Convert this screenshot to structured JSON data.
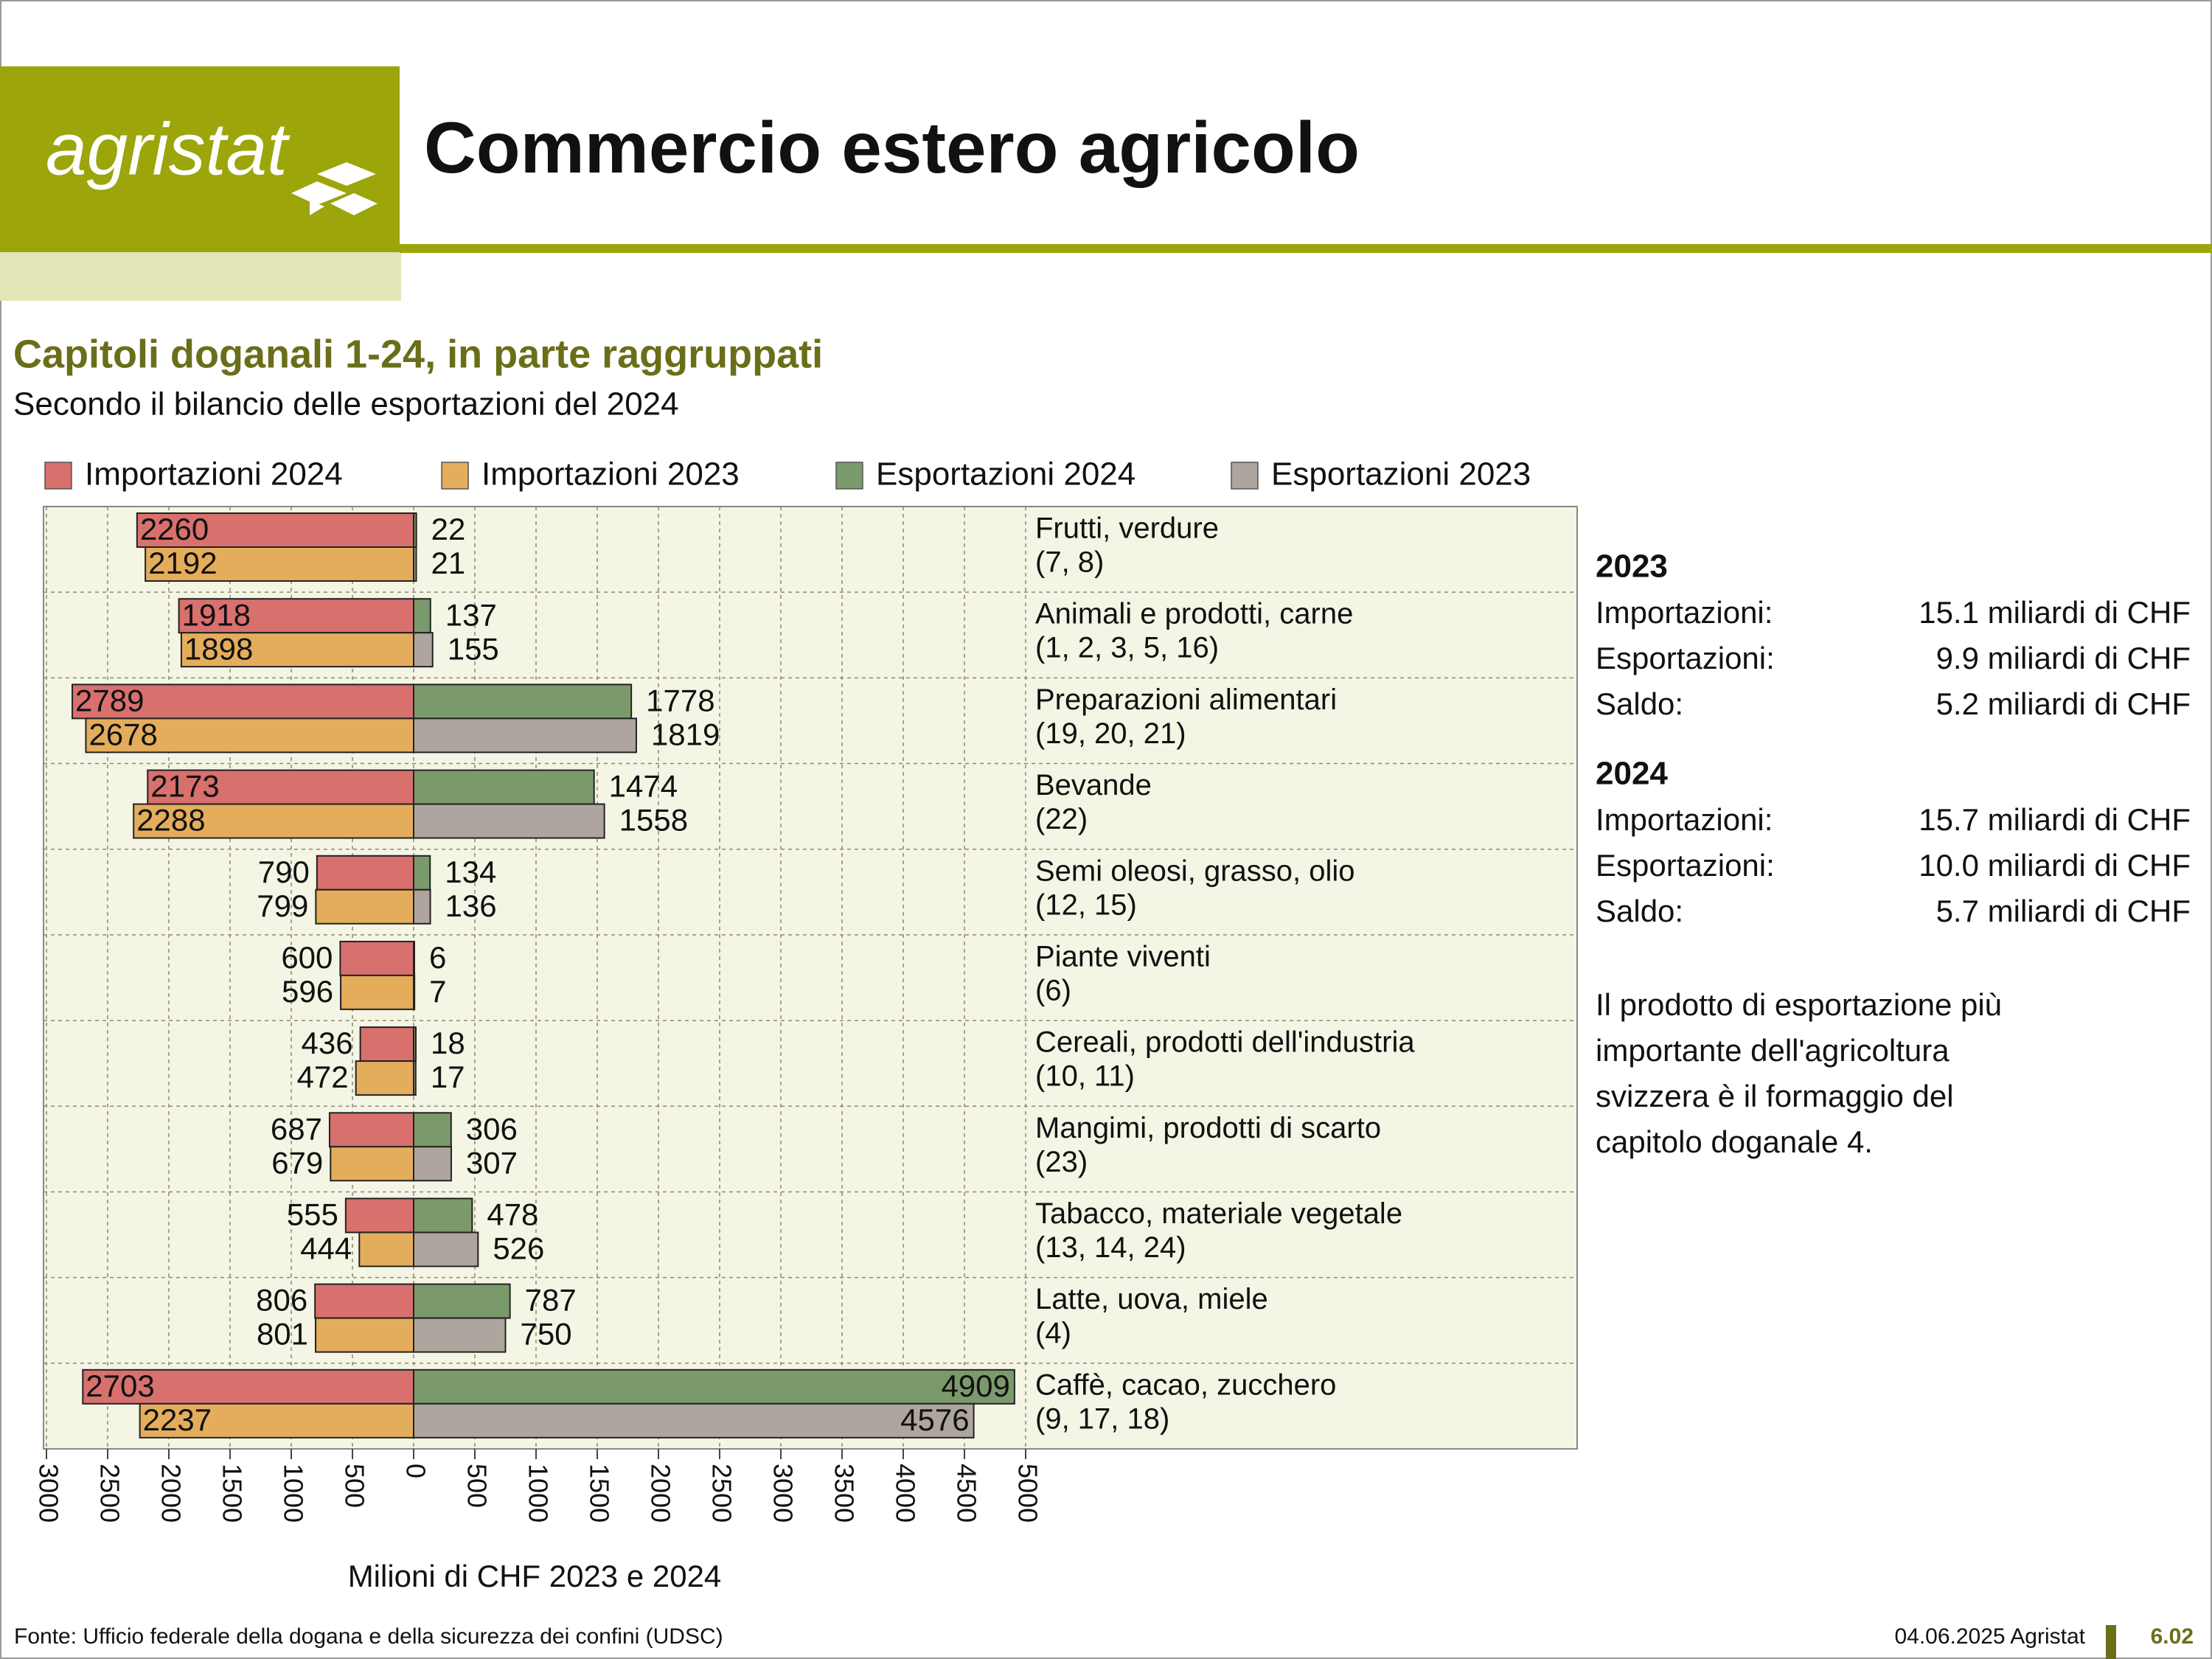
{
  "header": {
    "logo": "agristat",
    "title": "Commercio estero agricolo"
  },
  "chart_data": {
    "type": "bar",
    "orientation": "horizontal",
    "title": "Capitoli doganali 1-24, in parte raggruppati",
    "subtitle": "Secondo il bilancio delle esportazioni del 2024",
    "x_label": "Milioni di CHF 2023 e 2024",
    "categories": [
      [
        "Frutti, verdure",
        "(7, 8)"
      ],
      [
        "Animali e prodotti, carne",
        "(1, 2, 3, 5, 16)"
      ],
      [
        "Preparazioni alimentari",
        "(19, 20, 21)"
      ],
      [
        "Bevande",
        "(22)"
      ],
      [
        "Semi oleosi, grasso, olio",
        "(12, 15)"
      ],
      [
        "Piante viventi",
        "(6)"
      ],
      [
        "Cereali, prodotti dell'industria",
        "(10, 11)"
      ],
      [
        "Mangimi, prodotti di scarto",
        "(23)"
      ],
      [
        "Tabacco, materiale vegetale",
        "(13, 14, 24)"
      ],
      [
        "Latte, uova, miele",
        "(4)"
      ],
      [
        "Caffè, cacao, zucchero",
        "(9, 17, 18)"
      ]
    ],
    "series": [
      {
        "name": "Importazioni 2024",
        "color": "#d8706d",
        "values": [
          -2260,
          -1918,
          -2789,
          -2173,
          -790,
          -600,
          -436,
          -687,
          -555,
          -806,
          -2703
        ],
        "value_labels": [
          "2260",
          "1918",
          "2789",
          "2173",
          "790",
          "600",
          "436",
          "687",
          "555",
          "806",
          "2703"
        ]
      },
      {
        "name": "Importazioni 2023",
        "color": "#e4ad5b",
        "values": [
          -2192,
          -1898,
          -2678,
          -2288,
          -799,
          -596,
          -472,
          -679,
          -444,
          -801,
          -2237
        ],
        "value_labels": [
          "2192",
          "1898",
          "2678",
          "2288",
          "799",
          "596",
          "472",
          "679",
          "444",
          "801",
          "2237"
        ]
      },
      {
        "name": "Esportazioni 2024",
        "color": "#7b9a6c",
        "values": [
          22,
          137,
          1778,
          1474,
          134,
          6,
          18,
          306,
          478,
          787,
          4909
        ]
      },
      {
        "name": "Esportazioni 2023",
        "color": "#aea59e",
        "values": [
          21,
          155,
          1819,
          1558,
          136,
          7,
          17,
          307,
          526,
          750,
          4576
        ]
      }
    ],
    "xlim": [
      -3000,
      5000
    ],
    "xticks": [
      {
        "value": -3000,
        "label": "3000"
      },
      {
        "value": -2500,
        "label": "2500"
      },
      {
        "value": -2000,
        "label": "2000"
      },
      {
        "value": -1500,
        "label": "1500"
      },
      {
        "value": -1000,
        "label": "1000"
      },
      {
        "value": -500,
        "label": "500"
      },
      0,
      500,
      1000,
      1500,
      2000,
      2500,
      3000,
      3500,
      4000,
      4500,
      5000
    ],
    "grid": true,
    "legend": "top"
  },
  "summary": {
    "years": [
      {
        "year": "2023",
        "rows": [
          [
            "Importazioni:",
            "15.1 miliardi di CHF"
          ],
          [
            "Esportazioni:",
            "9.9 miliardi di CHF"
          ],
          [
            "Saldo:",
            "5.2 miliardi di CHF"
          ]
        ]
      },
      {
        "year": "2024",
        "rows": [
          [
            "Importazioni:",
            "15.7 miliardi di CHF"
          ],
          [
            "Esportazioni:",
            "10.0 miliardi di CHF"
          ],
          [
            "Saldo:",
            "5.7 miliardi di CHF"
          ]
        ]
      }
    ],
    "note": [
      "Il prodotto di esportazione più",
      "importante dell'agricoltura",
      "svizzera è il formaggio del",
      "capitolo doganale 4."
    ]
  },
  "footer": {
    "source": "Fonte: Ufficio federale della dogana e della sicurezza dei confini (UDSC)",
    "date": "04.06.2025 Agristat",
    "page": "6.02"
  }
}
